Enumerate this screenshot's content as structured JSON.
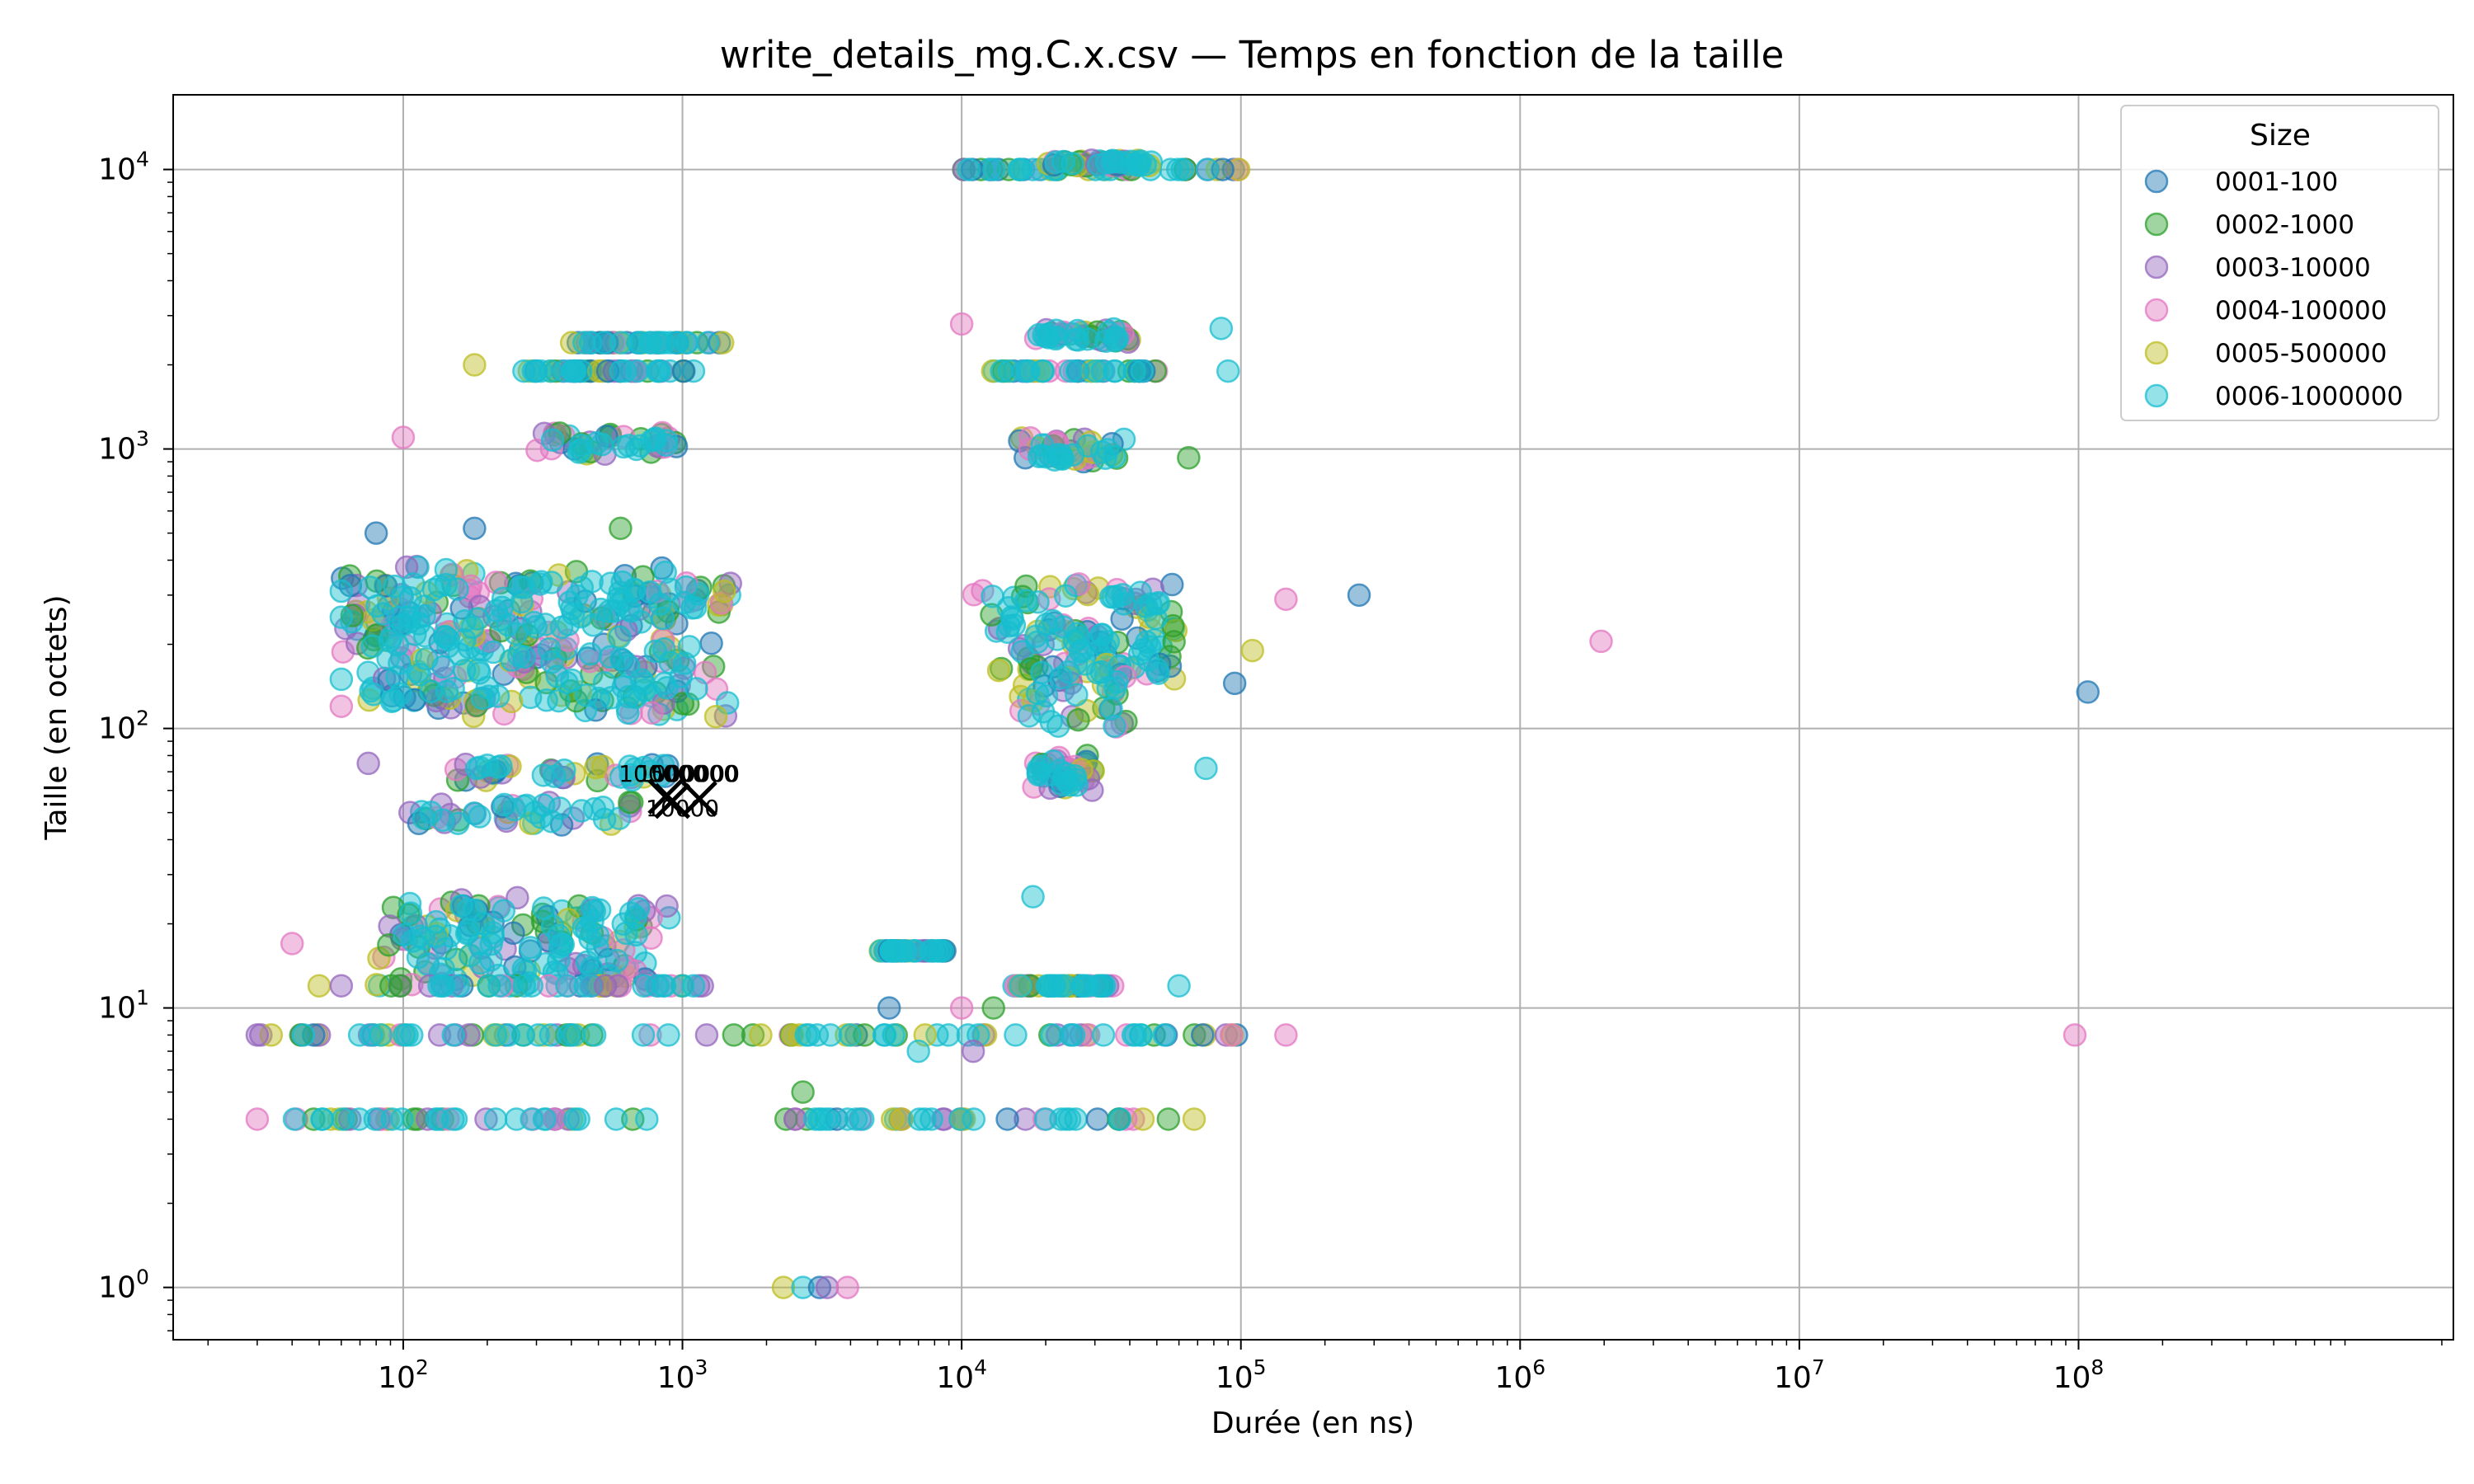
{
  "chart_data": {
    "type": "scatter",
    "title": "write_details_mg.C.x.csv — Temps en fonction de la taille",
    "xlabel": "Durée (en ns)",
    "ylabel": "Taille (en octets)",
    "x_scale": "log",
    "y_scale": "log",
    "xlim": [
      15,
      2200000000
    ],
    "ylim": [
      0.65,
      18500
    ],
    "x_ticks": [
      {
        "base": "10",
        "exp": "2",
        "value": 100
      },
      {
        "base": "10",
        "exp": "3",
        "value": 1000
      },
      {
        "base": "10",
        "exp": "4",
        "value": 10000
      },
      {
        "base": "10",
        "exp": "5",
        "value": 100000
      },
      {
        "base": "10",
        "exp": "6",
        "value": 1000000
      },
      {
        "base": "10",
        "exp": "7",
        "value": 10000000
      },
      {
        "base": "10",
        "exp": "8",
        "value": 100000000
      }
    ],
    "y_ticks": [
      {
        "base": "10",
        "exp": "0",
        "value": 1
      },
      {
        "base": "10",
        "exp": "1",
        "value": 10
      },
      {
        "base": "10",
        "exp": "2",
        "value": 100
      },
      {
        "base": "10",
        "exp": "3",
        "value": 1000
      },
      {
        "base": "10",
        "exp": "4",
        "value": 10000
      }
    ],
    "grid": true,
    "legend": {
      "title": "Size",
      "placement": "top-right"
    },
    "series": [
      {
        "name": "0001-100",
        "color": "#1f77b4"
      },
      {
        "name": "0002-1000",
        "color": "#2ca02c"
      },
      {
        "name": "0003-10000",
        "color": "#9467bd"
      },
      {
        "name": "0004-100000",
        "color": "#e377c2"
      },
      {
        "name": "0005-500000",
        "color": "#bcbd22"
      },
      {
        "name": "0006-1000000",
        "color": "#17becf"
      }
    ],
    "clusters": [
      {
        "x": [
          30,
          1000
        ],
        "y": [
          4,
          4
        ]
      },
      {
        "x": [
          30,
          1300
        ],
        "y": [
          8,
          8
        ]
      },
      {
        "x": [
          1500,
          100000
        ],
        "y": [
          8,
          8
        ]
      },
      {
        "x": [
          2300,
          50000
        ],
        "y": [
          4,
          4
        ]
      },
      {
        "x": [
          80,
          900
        ],
        "y": [
          12,
          25
        ]
      },
      {
        "x": [
          90,
          1500
        ],
        "y": [
          12,
          12
        ]
      },
      {
        "x": [
          100,
          700
        ],
        "y": [
          45,
          55
        ]
      },
      {
        "x": [
          150,
          1000
        ],
        "y": [
          65,
          75
        ]
      },
      {
        "x": [
          60,
          1500
        ],
        "y": [
          110,
          380
        ]
      },
      {
        "x": [
          11000,
          60000
        ],
        "y": [
          150,
          330
        ]
      },
      {
        "x": [
          16000,
          40000
        ],
        "y": [
          100,
          170
        ]
      },
      {
        "x": [
          18000,
          30000
        ],
        "y": [
          60,
          80
        ]
      },
      {
        "x": [
          15000,
          35000
        ],
        "y": [
          12,
          12
        ]
      },
      {
        "x": [
          5000,
          9000
        ],
        "y": [
          16,
          16
        ]
      },
      {
        "x": [
          300,
          1000
        ],
        "y": [
          950,
          1150
        ]
      },
      {
        "x": [
          250,
          1100
        ],
        "y": [
          1900,
          1900
        ]
      },
      {
        "x": [
          400,
          1400
        ],
        "y": [
          2400,
          2400
        ]
      },
      {
        "x": [
          12000,
          50000
        ],
        "y": [
          1900,
          1900
        ]
      },
      {
        "x": [
          18000,
          40000
        ],
        "y": [
          2400,
          2700
        ]
      },
      {
        "x": [
          15000,
          40000
        ],
        "y": [
          900,
          1100
        ]
      },
      {
        "x": [
          10000,
          100000
        ],
        "y": [
          10000,
          10000
        ]
      },
      {
        "x": [
          20000,
          50000
        ],
        "y": [
          10300,
          10800
        ]
      }
    ],
    "points": [
      {
        "x": 30,
        "y": 4,
        "s": 3
      },
      {
        "x": 30,
        "y": 8,
        "s": 2
      },
      {
        "x": 2300,
        "y": 1,
        "s": 4
      },
      {
        "x": 2700,
        "y": 1,
        "s": 5
      },
      {
        "x": 3100,
        "y": 1,
        "s": 0
      },
      {
        "x": 3300,
        "y": 1,
        "s": 2
      },
      {
        "x": 3900,
        "y": 1,
        "s": 3
      },
      {
        "x": 2700,
        "y": 5,
        "s": 1
      },
      {
        "x": 100,
        "y": 1100,
        "s": 3
      },
      {
        "x": 180,
        "y": 2000,
        "s": 4
      },
      {
        "x": 10000,
        "y": 2800,
        "s": 3
      },
      {
        "x": 85000,
        "y": 2700,
        "s": 5
      },
      {
        "x": 90000,
        "y": 1900,
        "s": 5
      },
      {
        "x": 65000,
        "y": 930,
        "s": 1
      },
      {
        "x": 265000,
        "y": 300,
        "s": 0
      },
      {
        "x": 145000,
        "y": 290,
        "s": 3
      },
      {
        "x": 110000,
        "y": 190,
        "s": 4
      },
      {
        "x": 95000,
        "y": 145,
        "s": 0
      },
      {
        "x": 75000,
        "y": 72,
        "s": 5
      },
      {
        "x": 1950000,
        "y": 205,
        "s": 3
      },
      {
        "x": 108000000,
        "y": 135,
        "s": 0
      },
      {
        "x": 145000,
        "y": 8,
        "s": 3
      },
      {
        "x": 97000000,
        "y": 8,
        "s": 3
      },
      {
        "x": 60000,
        "y": 12,
        "s": 5
      },
      {
        "x": 55000,
        "y": 4,
        "s": 1
      },
      {
        "x": 68000,
        "y": 4,
        "s": 4
      },
      {
        "x": 18000,
        "y": 25,
        "s": 5
      },
      {
        "x": 80,
        "y": 500,
        "s": 0
      },
      {
        "x": 180,
        "y": 520,
        "s": 0
      },
      {
        "x": 600,
        "y": 520,
        "s": 1
      },
      {
        "x": 60,
        "y": 310,
        "s": 5
      },
      {
        "x": 60,
        "y": 250,
        "s": 5
      },
      {
        "x": 60,
        "y": 150,
        "s": 5
      },
      {
        "x": 60,
        "y": 120,
        "s": 3
      },
      {
        "x": 75,
        "y": 75,
        "s": 2
      },
      {
        "x": 40,
        "y": 17,
        "s": 3
      },
      {
        "x": 50,
        "y": 12,
        "s": 4
      },
      {
        "x": 60,
        "y": 12,
        "s": 2
      },
      {
        "x": 7000,
        "y": 7,
        "s": 5
      },
      {
        "x": 10000,
        "y": 10,
        "s": 3
      },
      {
        "x": 13000,
        "y": 10,
        "s": 1
      },
      {
        "x": 5500,
        "y": 10,
        "s": 0
      },
      {
        "x": 11000,
        "y": 7,
        "s": 2
      }
    ],
    "annotations": [
      {
        "text": "100000",
        "x": 850,
        "y": 69
      },
      {
        "text": "1000000",
        "x": 1050,
        "y": 69
      },
      {
        "text": "10000",
        "x": 1000,
        "y": 52
      },
      {
        "text": "500000",
        "x": 1100,
        "y": 69
      }
    ],
    "markers": [
      {
        "x": 870,
        "y": 57
      },
      {
        "x": 920,
        "y": 55
      },
      {
        "x": 1150,
        "y": 56
      }
    ]
  }
}
